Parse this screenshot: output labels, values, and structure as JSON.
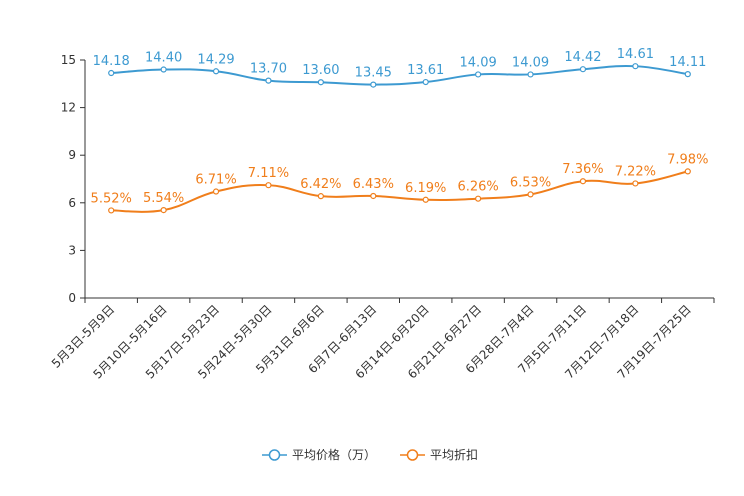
{
  "chart_data": {
    "type": "line",
    "title": "",
    "xlabel": "",
    "ylabel": "",
    "ylim": [
      0,
      15
    ],
    "yticks": [
      0,
      3,
      6,
      9,
      12,
      15
    ],
    "grid": false,
    "legend_position": "bottom",
    "categories": [
      "5月3日-5月9日",
      "5月10日-5月16日",
      "5月17日-5月23日",
      "5月24日-5月30日",
      "5月31日-6月6日",
      "6月7日-6月13日",
      "6月14日-6月20日",
      "6月21日-6月27日",
      "6月28日-7月4日",
      "7月5日-7月11日",
      "7月12日-7月18日",
      "7月19日-7月25日"
    ],
    "series": [
      {
        "name": "平均价格（万）",
        "color": "#3d9ad1",
        "values": [
          14.18,
          14.4,
          14.29,
          13.7,
          13.6,
          13.45,
          13.61,
          14.09,
          14.09,
          14.42,
          14.61,
          14.11
        ],
        "labels": [
          "14.18",
          "14.40",
          "14.29",
          "13.70",
          "13.60",
          "13.45",
          "13.61",
          "14.09",
          "14.09",
          "14.42",
          "14.61",
          "14.11"
        ]
      },
      {
        "name": "平均折扣",
        "color": "#f07e1b",
        "values": [
          5.52,
          5.54,
          6.71,
          7.11,
          6.42,
          6.43,
          6.19,
          6.26,
          6.53,
          7.36,
          7.22,
          7.98
        ],
        "labels": [
          "5.52%",
          "5.54%",
          "6.71%",
          "7.11%",
          "6.42%",
          "6.43%",
          "6.19%",
          "6.26%",
          "6.53%",
          "7.36%",
          "7.22%",
          "7.98%"
        ]
      }
    ]
  }
}
